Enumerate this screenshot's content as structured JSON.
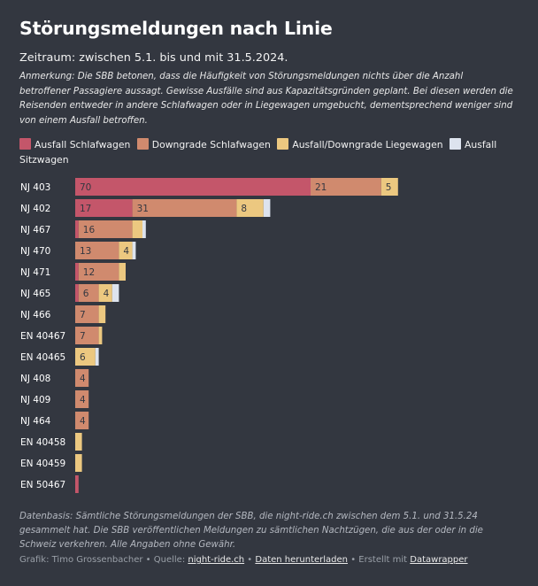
{
  "title": "Störungsmeldungen nach Linie",
  "subtitle": "Zeitraum: zwischen 5.1. bis und mit 31.5.2024.",
  "note": "Anmerkung: Die SBB betonen, dass die Häufigkeit von Störungsmeldungen nichts über die Anzahl betroffener Passagiere aussagt. Gewisse Ausfälle sind aus Kapazitätsgründen geplant. Bei diesen werden die Reisenden entweder in andere Schlafwagen oder in Liegewagen umgebucht, dementsprechend weniger sind von einem Ausfall betroffen.",
  "footer": "Datenbasis: Sämtliche Störungsmeldungen der SBB, die night-ride.ch zwischen dem 5.1. und 31.5.24 gesammelt hat. Die SBB veröffentlichen Meldungen zu sämtlichen Nachtzügen, die aus der oder in die Schweiz verkehren. Alle Angaben ohne Gewähr.",
  "credits": {
    "author": "Grafik: Timo Grossenbacher",
    "sep1": " • Quelle: ",
    "source_link": "night-ride.ch",
    "sep2": " • ",
    "download_link": "Daten herunterladen",
    "sep3": " • Erstellt mit ",
    "tool_link": "Datawrapper"
  },
  "colors": {
    "background": "#333740",
    "Ausfall Schlafwagen": "#c4566a",
    "Downgrade Schlafwagen": "#d08a6e",
    "Ausfall/Downgrade Liegewagen": "#ecc880",
    "Ausfall Sitzwagen": "#dde3ee"
  },
  "chart_data": {
    "type": "bar",
    "orientation": "horizontal",
    "stacked": true,
    "categories": [
      "NJ 403",
      "NJ 402",
      "NJ 467",
      "NJ 470",
      "NJ 471",
      "NJ 465",
      "NJ 466",
      "EN 40467",
      "EN 40465",
      "NJ 408",
      "NJ 409",
      "NJ 464",
      "EN 40458",
      "EN 40459",
      "EN 50467"
    ],
    "series": [
      {
        "name": "Ausfall Schlafwagen",
        "values": [
          70,
          17,
          1,
          0,
          1,
          1,
          0,
          0,
          0,
          0,
          0,
          0,
          0,
          0,
          1
        ]
      },
      {
        "name": "Downgrade Schlafwagen",
        "values": [
          21,
          31,
          16,
          13,
          12,
          6,
          7,
          7,
          0,
          4,
          4,
          4,
          0,
          0,
          0
        ]
      },
      {
        "name": "Ausfall/Downgrade Liegewagen",
        "values": [
          5,
          8,
          3,
          4,
          2,
          4,
          2,
          1,
          6,
          0,
          0,
          0,
          2,
          2,
          0
        ]
      },
      {
        "name": "Ausfall Sitzwagen",
        "values": [
          0,
          2,
          1,
          1,
          0,
          2,
          0,
          0,
          1,
          0,
          0,
          0,
          0,
          0,
          0
        ]
      }
    ],
    "legend_position": "top",
    "grid": false
  }
}
